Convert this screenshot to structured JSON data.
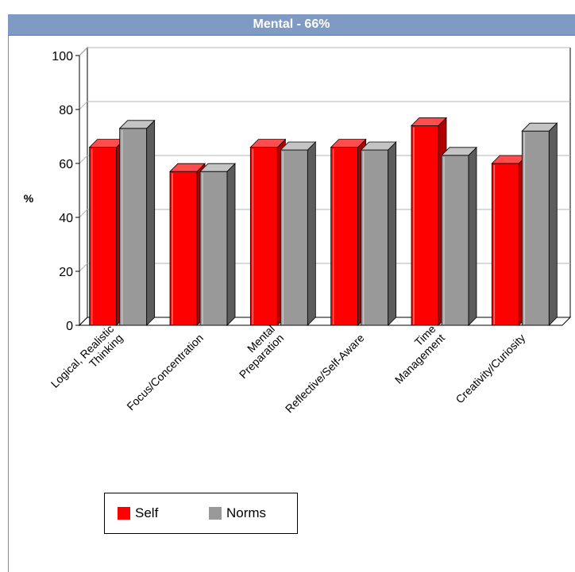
{
  "header": {
    "title_prefix": "Mental",
    "title_sep": " - ",
    "title_value": "66%"
  },
  "colors": {
    "header_bg": "#7f9bc4",
    "self": "#ff0000",
    "self_dark": "#b30000",
    "self_top": "#ff4d4d",
    "norms": "#999999",
    "norms_dark": "#5c5c5c",
    "norms_top": "#c4c4c4"
  },
  "chart_data": {
    "type": "bar",
    "title": "Mental - 66%",
    "xlabel": "",
    "ylabel": "%",
    "ylim": [
      0,
      100
    ],
    "yticks": [
      0,
      20,
      40,
      60,
      80,
      100
    ],
    "grid": true,
    "categories": [
      [
        "Logical, Realistic",
        "Thinking"
      ],
      [
        "Focus/Concentration"
      ],
      [
        "Mental",
        "Preparation"
      ],
      [
        "Reflective/Self-Aware"
      ],
      [
        "Time",
        "Management"
      ],
      [
        "Creativity/Curiosity"
      ]
    ],
    "series": [
      {
        "name": "Self",
        "values": [
          66,
          57,
          66,
          66,
          74,
          60
        ]
      },
      {
        "name": "Norms",
        "values": [
          73,
          57,
          65,
          65,
          63,
          72
        ]
      }
    ],
    "legend_position": "bottom-left"
  }
}
